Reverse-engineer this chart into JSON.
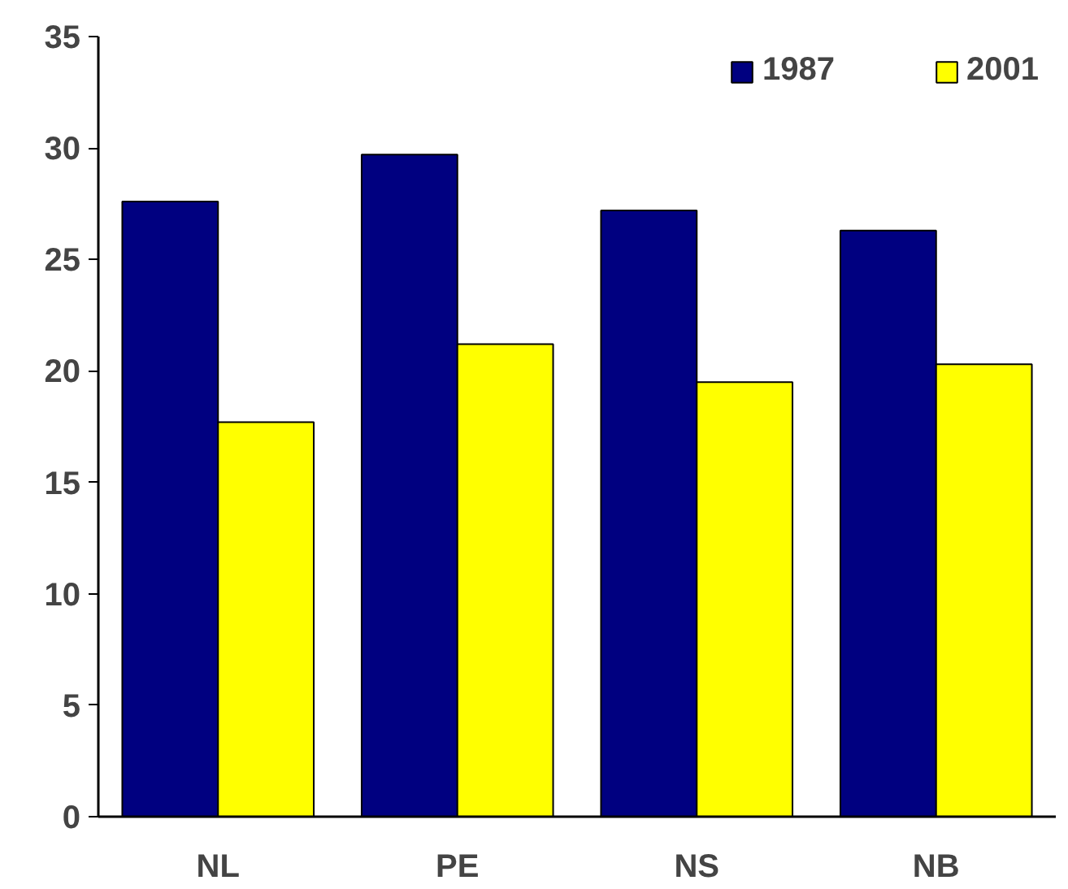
{
  "chart_data": {
    "type": "bar",
    "categories": [
      "NL",
      "PE",
      "NS",
      "NB"
    ],
    "series": [
      {
        "name": "1987",
        "color": "#000080",
        "values": [
          27.6,
          29.7,
          27.2,
          26.3
        ]
      },
      {
        "name": "2001",
        "color": "#ffff00",
        "values": [
          17.7,
          21.2,
          19.5,
          20.3
        ]
      }
    ],
    "ylim": [
      0,
      35
    ],
    "yticks": [
      0,
      5,
      10,
      15,
      20,
      25,
      30,
      35
    ],
    "grid": false,
    "legend": "top right"
  }
}
